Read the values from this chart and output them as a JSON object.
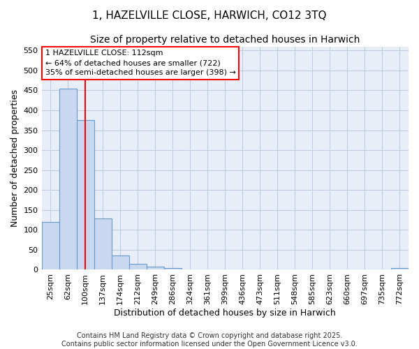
{
  "title1": "1, HAZELVILLE CLOSE, HARWICH, CO12 3TQ",
  "title2": "Size of property relative to detached houses in Harwich",
  "xlabel": "Distribution of detached houses by size in Harwich",
  "ylabel": "Number of detached properties",
  "categories": [
    "25sqm",
    "62sqm",
    "100sqm",
    "137sqm",
    "174sqm",
    "212sqm",
    "249sqm",
    "286sqm",
    "324sqm",
    "361sqm",
    "399sqm",
    "436sqm",
    "473sqm",
    "511sqm",
    "548sqm",
    "585sqm",
    "623sqm",
    "660sqm",
    "697sqm",
    "735sqm",
    "772sqm"
  ],
  "values": [
    120,
    455,
    375,
    128,
    35,
    15,
    8,
    5,
    0,
    0,
    0,
    0,
    0,
    0,
    0,
    0,
    0,
    0,
    0,
    0,
    5
  ],
  "bar_color": "#c8d8f0",
  "bar_edge_color": "#6699cc",
  "ylim": [
    0,
    560
  ],
  "yticks": [
    0,
    50,
    100,
    150,
    200,
    250,
    300,
    350,
    400,
    450,
    500,
    550
  ],
  "red_line_x": 2.0,
  "annotation_text": "1 HAZELVILLE CLOSE: 112sqm\n← 64% of detached houses are smaller (722)\n35% of semi-detached houses are larger (398) →",
  "footer": "Contains HM Land Registry data © Crown copyright and database right 2025.\nContains public sector information licensed under the Open Government Licence v3.0.",
  "fig_bg_color": "#ffffff",
  "axes_bg_color": "#e8eef8",
  "grid_color": "#c0cce0",
  "title1_fontsize": 11,
  "title2_fontsize": 10,
  "xlabel_fontsize": 9,
  "ylabel_fontsize": 9,
  "tick_fontsize": 8,
  "footer_fontsize": 7,
  "annot_fontsize": 8
}
